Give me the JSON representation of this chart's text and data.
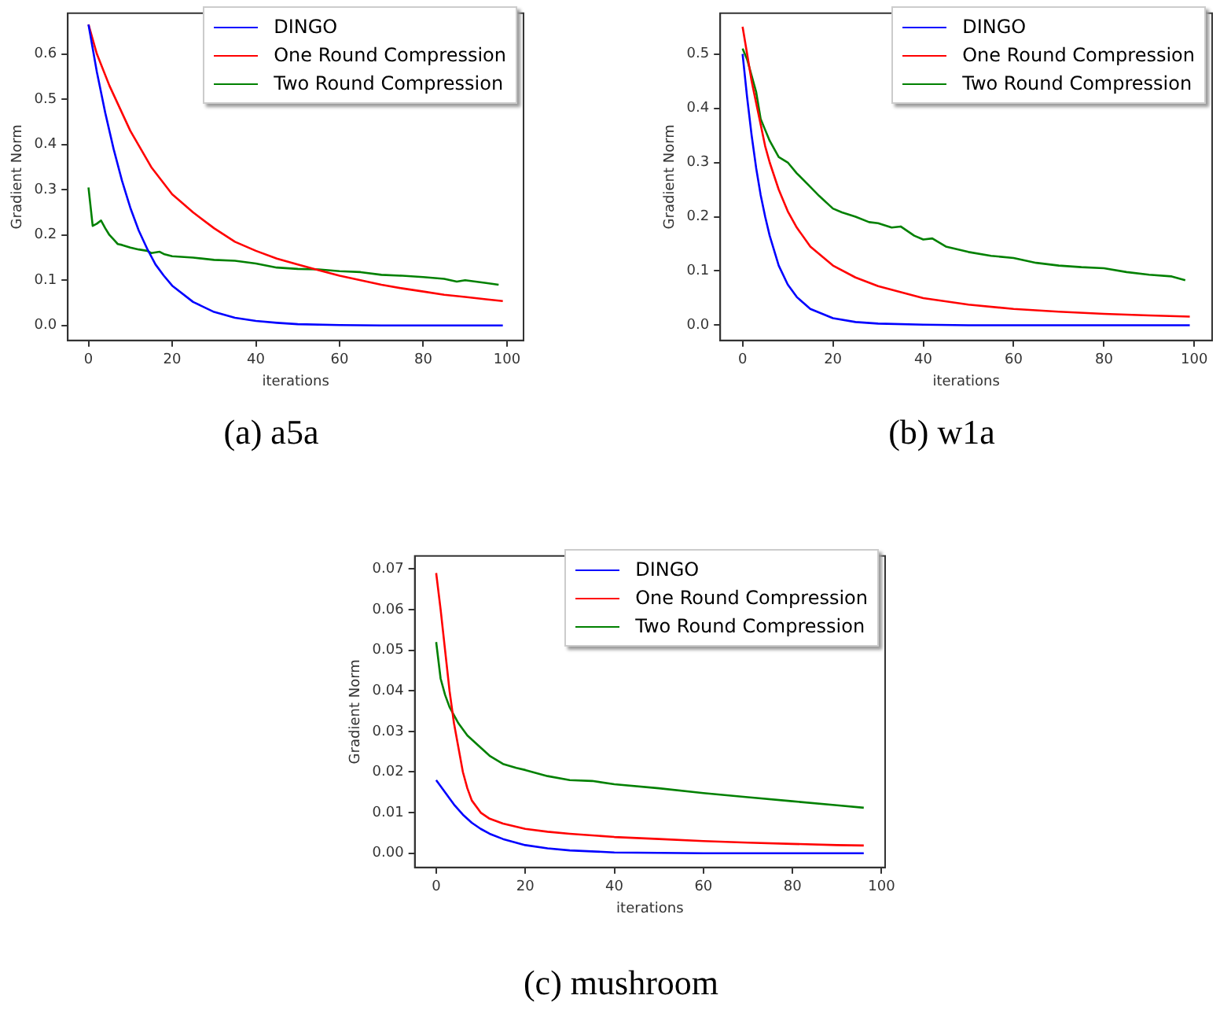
{
  "chart_data": [
    {
      "type": "line",
      "xlabel": "iterations",
      "ylabel": "Gradient Norm",
      "annotations": [
        "(a) a5a"
      ],
      "xlim": [
        -4.95,
        103.95
      ],
      "xticks": [
        0,
        20,
        40,
        60,
        80,
        100
      ],
      "ylim": [
        -0.033,
        0.69
      ],
      "yticks": [
        {
          "value": 0,
          "label": "0.0"
        },
        0.1,
        0.2,
        0.3,
        0.4,
        0.5,
        0.6
      ],
      "grid": false,
      "legend": "top right",
      "marker": "none",
      "line_style": "solid",
      "series": [
        {
          "name": "DINGO",
          "color": "#0000ff",
          "x": [
            0,
            2,
            4,
            6,
            8,
            10,
            12,
            14,
            16,
            18,
            20,
            25,
            30,
            35,
            40,
            45,
            50,
            60,
            70,
            80,
            90,
            99
          ],
          "values": [
            0.665,
            0.56,
            0.47,
            0.39,
            0.32,
            0.26,
            0.21,
            0.17,
            0.135,
            0.11,
            0.088,
            0.052,
            0.03,
            0.017,
            0.01,
            0.006,
            0.003,
            0.001,
            0,
            0,
            0,
            0
          ]
        },
        {
          "name": "One Round Compression",
          "color": "#ff0000",
          "x": [
            0,
            2,
            5,
            10,
            15,
            20,
            25,
            30,
            35,
            40,
            45,
            50,
            55,
            60,
            65,
            70,
            75,
            80,
            85,
            90,
            95,
            99
          ],
          "values": [
            0.665,
            0.6,
            0.53,
            0.43,
            0.35,
            0.29,
            0.25,
            0.215,
            0.185,
            0.165,
            0.148,
            0.135,
            0.122,
            0.11,
            0.1,
            0.09,
            0.082,
            0.075,
            0.068,
            0.063,
            0.058,
            0.054
          ]
        },
        {
          "name": "Two Round Compression",
          "color": "#008000",
          "x": [
            0,
            1,
            2,
            3,
            4,
            5,
            6,
            7,
            8,
            10,
            12,
            14,
            15,
            17,
            18,
            20,
            25,
            30,
            35,
            40,
            45,
            50,
            55,
            60,
            65,
            70,
            75,
            80,
            85,
            88,
            90,
            95,
            98
          ],
          "values": [
            0.305,
            0.22,
            0.225,
            0.232,
            0.215,
            0.2,
            0.19,
            0.18,
            0.178,
            0.172,
            0.168,
            0.165,
            0.16,
            0.163,
            0.158,
            0.153,
            0.15,
            0.145,
            0.143,
            0.137,
            0.128,
            0.125,
            0.124,
            0.12,
            0.118,
            0.112,
            0.11,
            0.107,
            0.103,
            0.097,
            0.1,
            0.094,
            0.09
          ]
        }
      ]
    },
    {
      "type": "line",
      "xlabel": "iterations",
      "ylabel": "Gradient Norm",
      "annotations": [
        "(b) w1a"
      ],
      "xlim": [
        -4.95,
        103.95
      ],
      "xticks": [
        0,
        20,
        40,
        60,
        80,
        100
      ],
      "ylim": [
        -0.028,
        0.575
      ],
      "yticks": [
        {
          "value": 0,
          "label": "0.0"
        },
        0.1,
        0.2,
        0.3,
        0.4,
        0.5
      ],
      "grid": false,
      "legend": "top right",
      "marker": "none",
      "line_style": "solid",
      "series": [
        {
          "name": "DINGO",
          "color": "#0000ff",
          "x": [
            0,
            1,
            2,
            3,
            4,
            5,
            6,
            8,
            10,
            12,
            15,
            20,
            25,
            30,
            40,
            50,
            99
          ],
          "values": [
            0.5,
            0.42,
            0.35,
            0.29,
            0.24,
            0.2,
            0.165,
            0.11,
            0.075,
            0.052,
            0.03,
            0.013,
            0.006,
            0.003,
            0.001,
            0,
            0
          ]
        },
        {
          "name": "One Round Compression",
          "color": "#ff0000",
          "x": [
            0,
            1,
            2,
            3,
            4,
            5,
            6,
            8,
            10,
            12,
            15,
            20,
            25,
            30,
            40,
            50,
            60,
            70,
            80,
            90,
            99
          ],
          "values": [
            0.55,
            0.5,
            0.45,
            0.41,
            0.37,
            0.33,
            0.3,
            0.25,
            0.21,
            0.18,
            0.145,
            0.11,
            0.088,
            0.072,
            0.05,
            0.038,
            0.03,
            0.025,
            0.021,
            0.018,
            0.016
          ]
        },
        {
          "name": "Two Round Compression",
          "color": "#008000",
          "x": [
            0,
            1,
            2,
            3,
            4,
            5,
            6,
            8,
            10,
            12,
            15,
            17,
            20,
            22,
            25,
            28,
            30,
            33,
            35,
            38,
            40,
            42,
            45,
            50,
            55,
            60,
            65,
            70,
            75,
            80,
            85,
            90,
            95,
            98
          ],
          "values": [
            0.51,
            0.49,
            0.46,
            0.43,
            0.38,
            0.36,
            0.34,
            0.31,
            0.3,
            0.28,
            0.255,
            0.238,
            0.215,
            0.208,
            0.2,
            0.19,
            0.188,
            0.18,
            0.182,
            0.165,
            0.158,
            0.16,
            0.145,
            0.135,
            0.128,
            0.124,
            0.115,
            0.11,
            0.107,
            0.105,
            0.098,
            0.093,
            0.09,
            0.083
          ]
        }
      ]
    },
    {
      "type": "line",
      "xlabel": "iterations",
      "ylabel": "Gradient Norm",
      "annotations": [
        "(c) mushroom"
      ],
      "xlim": [
        -4.8,
        100.8
      ],
      "xticks": [
        0,
        20,
        40,
        60,
        80,
        100
      ],
      "ylim": [
        -0.0035,
        0.0732
      ],
      "yticks": [
        {
          "value": 0,
          "label": "0.00"
        },
        {
          "value": 0.01,
          "label": "0.01"
        },
        {
          "value": 0.02,
          "label": "0.02"
        },
        {
          "value": 0.03,
          "label": "0.03"
        },
        {
          "value": 0.04,
          "label": "0.04"
        },
        {
          "value": 0.05,
          "label": "0.05"
        },
        {
          "value": 0.06,
          "label": "0.06"
        },
        {
          "value": 0.07,
          "label": "0.07"
        }
      ],
      "grid": false,
      "legend": "top right",
      "marker": "none",
      "line_style": "solid",
      "series": [
        {
          "name": "DINGO",
          "color": "#0000ff",
          "x": [
            0,
            2,
            4,
            6,
            8,
            10,
            12,
            15,
            20,
            25,
            30,
            40,
            50,
            60,
            96
          ],
          "values": [
            0.018,
            0.015,
            0.012,
            0.0095,
            0.0075,
            0.006,
            0.0048,
            0.0035,
            0.002,
            0.0012,
            0.0007,
            0.0002,
            0.0001,
            0,
            0
          ]
        },
        {
          "name": "One Round Compression",
          "color": "#ff0000",
          "x": [
            0,
            1,
            2,
            3,
            4,
            5,
            6,
            7,
            8,
            10,
            12,
            15,
            20,
            25,
            30,
            40,
            50,
            60,
            70,
            80,
            90,
            96
          ],
          "values": [
            0.069,
            0.06,
            0.05,
            0.04,
            0.032,
            0.026,
            0.02,
            0.016,
            0.013,
            0.01,
            0.0085,
            0.0073,
            0.006,
            0.0053,
            0.0048,
            0.004,
            0.0035,
            0.003,
            0.0026,
            0.0023,
            0.002,
            0.0019
          ]
        },
        {
          "name": "Two Round Compression",
          "color": "#008000",
          "x": [
            0,
            1,
            2,
            3,
            5,
            7,
            10,
            12,
            15,
            18,
            20,
            25,
            30,
            35,
            40,
            50,
            60,
            70,
            80,
            90,
            96
          ],
          "values": [
            0.052,
            0.043,
            0.039,
            0.036,
            0.032,
            0.029,
            0.026,
            0.024,
            0.022,
            0.021,
            0.0205,
            0.019,
            0.018,
            0.0178,
            0.017,
            0.016,
            0.0148,
            0.0138,
            0.0128,
            0.0118,
            0.0112
          ]
        }
      ]
    }
  ]
}
